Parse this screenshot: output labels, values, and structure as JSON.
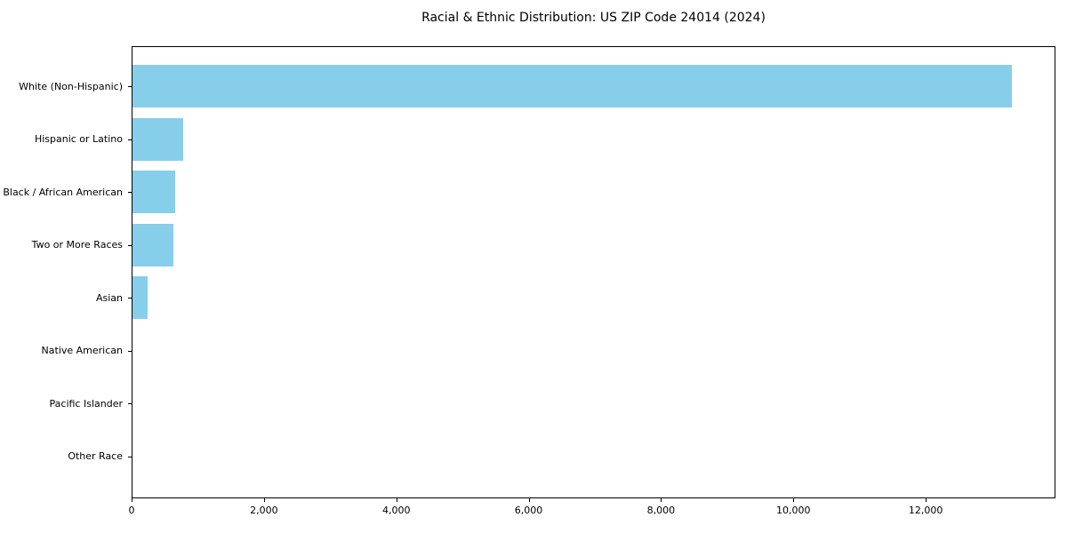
{
  "chart_data": {
    "type": "bar",
    "orientation": "horizontal",
    "title": "Racial & Ethnic Distribution: US ZIP Code 24014 (2024)",
    "categories": [
      "White (Non-Hispanic)",
      "Hispanic or Latino",
      "Black / African American",
      "Two or More Races",
      "Asian",
      "Native American",
      "Pacific Islander",
      "Other Race"
    ],
    "values": [
      13290,
      760,
      650,
      620,
      235,
      0,
      0,
      0
    ],
    "xlabel": "",
    "ylabel": "",
    "xlim": [
      0,
      13960
    ],
    "x_ticks": [
      0,
      2000,
      4000,
      6000,
      8000,
      10000,
      12000
    ],
    "x_tick_labels": [
      "0",
      "2,000",
      "4,000",
      "6,000",
      "8,000",
      "10,000",
      "12,000"
    ],
    "bar_color": "#87ceeb",
    "axis_color": "#000000",
    "text_color": "#000000",
    "grid": "off",
    "legend": "none"
  }
}
